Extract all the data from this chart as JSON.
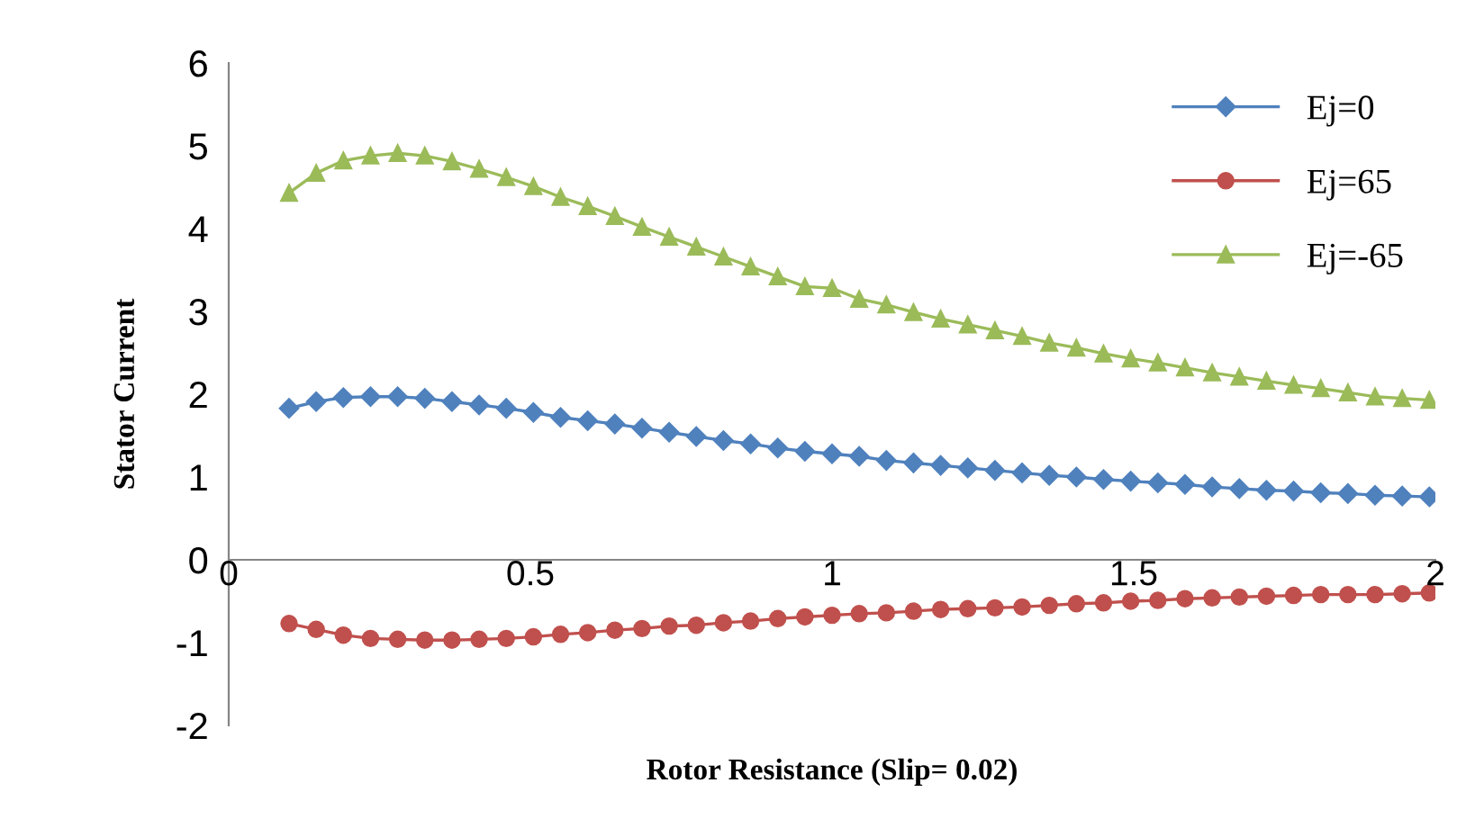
{
  "chart_data": {
    "type": "line",
    "xlabel": "Rotor Resistance (Slip= 0.02)",
    "ylabel": "Stator Current",
    "xlim": [
      0,
      2
    ],
    "ylim": [
      -2,
      6
    ],
    "xticks": [
      0,
      0.5,
      1,
      1.5,
      2
    ],
    "yticks": [
      -2,
      -1,
      0,
      1,
      2,
      3,
      4,
      5,
      6
    ],
    "grid": false,
    "legend": "top right",
    "x": [
      0.1,
      0.145,
      0.19,
      0.235,
      0.28,
      0.325,
      0.37,
      0.415,
      0.46,
      0.505,
      0.55,
      0.595,
      0.64,
      0.685,
      0.73,
      0.775,
      0.82,
      0.865,
      0.91,
      0.955,
      1.0,
      1.045,
      1.09,
      1.135,
      1.18,
      1.225,
      1.27,
      1.315,
      1.36,
      1.405,
      1.45,
      1.495,
      1.54,
      1.585,
      1.63,
      1.675,
      1.72,
      1.765,
      1.81,
      1.855,
      1.9,
      1.945,
      1.99
    ],
    "series": [
      {
        "name": "Ej=0",
        "color": "#4f81bd",
        "marker": "diamond",
        "values": [
          1.83,
          1.91,
          1.96,
          1.97,
          1.97,
          1.95,
          1.91,
          1.87,
          1.83,
          1.78,
          1.72,
          1.68,
          1.64,
          1.59,
          1.54,
          1.49,
          1.44,
          1.4,
          1.35,
          1.31,
          1.28,
          1.25,
          1.2,
          1.17,
          1.14,
          1.11,
          1.08,
          1.05,
          1.02,
          1.0,
          0.97,
          0.95,
          0.93,
          0.91,
          0.88,
          0.86,
          0.84,
          0.83,
          0.81,
          0.8,
          0.78,
          0.77,
          0.76
        ]
      },
      {
        "name": "Ej=65",
        "color": "#c0504d",
        "marker": "circle",
        "values": [
          -0.77,
          -0.84,
          -0.91,
          -0.95,
          -0.96,
          -0.97,
          -0.97,
          -0.96,
          -0.95,
          -0.93,
          -0.9,
          -0.88,
          -0.85,
          -0.83,
          -0.8,
          -0.79,
          -0.76,
          -0.74,
          -0.71,
          -0.69,
          -0.67,
          -0.65,
          -0.64,
          -0.62,
          -0.6,
          -0.59,
          -0.58,
          -0.57,
          -0.55,
          -0.53,
          -0.52,
          -0.5,
          -0.49,
          -0.47,
          -0.46,
          -0.45,
          -0.44,
          -0.43,
          -0.42,
          -0.42,
          -0.42,
          -0.41,
          -0.4
        ]
      },
      {
        "name": "Ej=-65",
        "color": "#9bbb59",
        "marker": "triangle",
        "values": [
          4.43,
          4.67,
          4.82,
          4.88,
          4.91,
          4.88,
          4.81,
          4.72,
          4.62,
          4.51,
          4.38,
          4.27,
          4.15,
          4.02,
          3.9,
          3.78,
          3.66,
          3.54,
          3.42,
          3.3,
          3.28,
          3.15,
          3.08,
          2.99,
          2.91,
          2.84,
          2.77,
          2.7,
          2.62,
          2.56,
          2.49,
          2.43,
          2.38,
          2.32,
          2.26,
          2.21,
          2.16,
          2.11,
          2.07,
          2.02,
          1.97,
          1.95,
          1.93
        ]
      }
    ]
  }
}
